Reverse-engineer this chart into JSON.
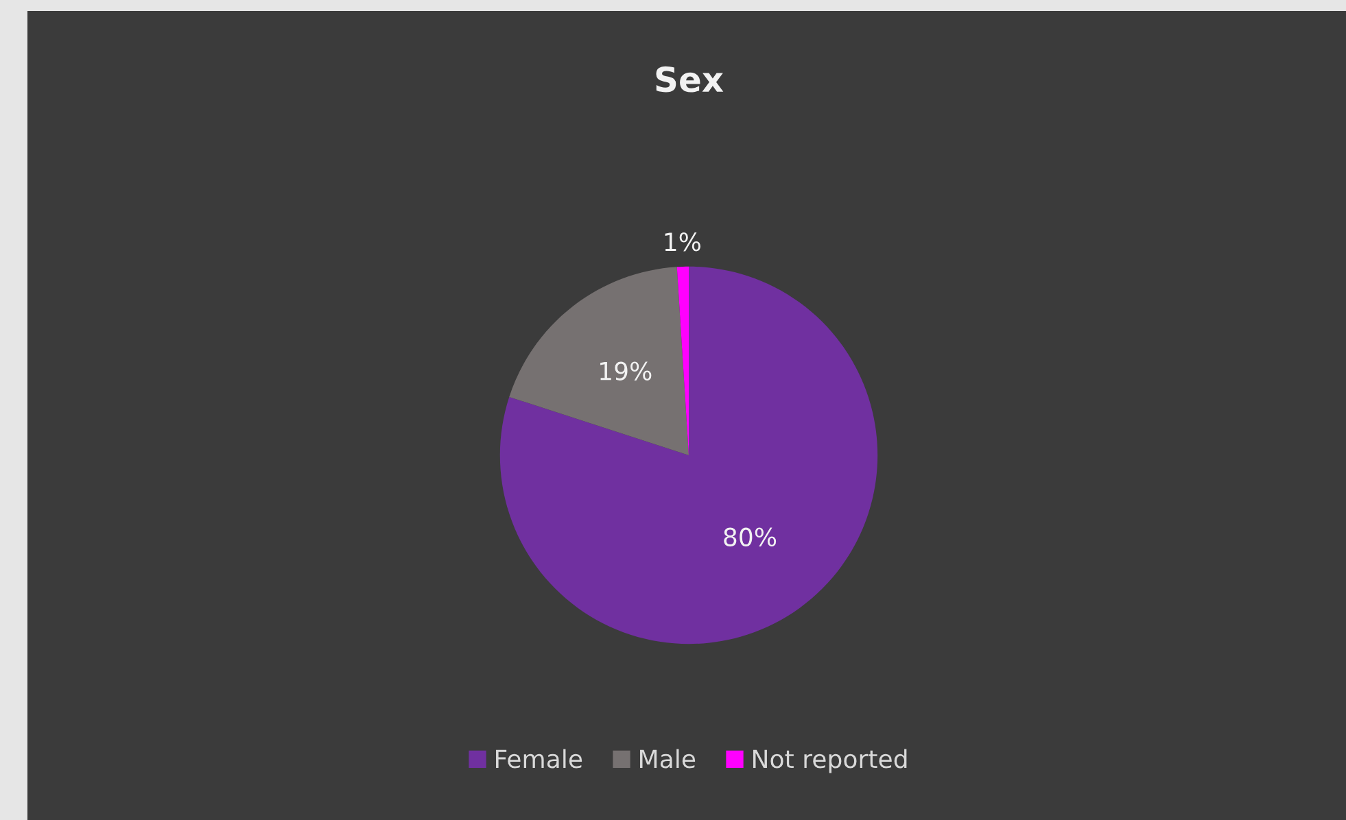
{
  "chart_data": {
    "type": "pie",
    "title": "Sex",
    "categories": [
      "Female",
      "Male",
      "Not reported"
    ],
    "values": [
      80,
      19,
      1
    ],
    "colors": [
      "#7030a0",
      "#767171",
      "#ff00ff"
    ],
    "value_labels": [
      "80%",
      "19%",
      "1%"
    ],
    "legend": "bottom"
  }
}
